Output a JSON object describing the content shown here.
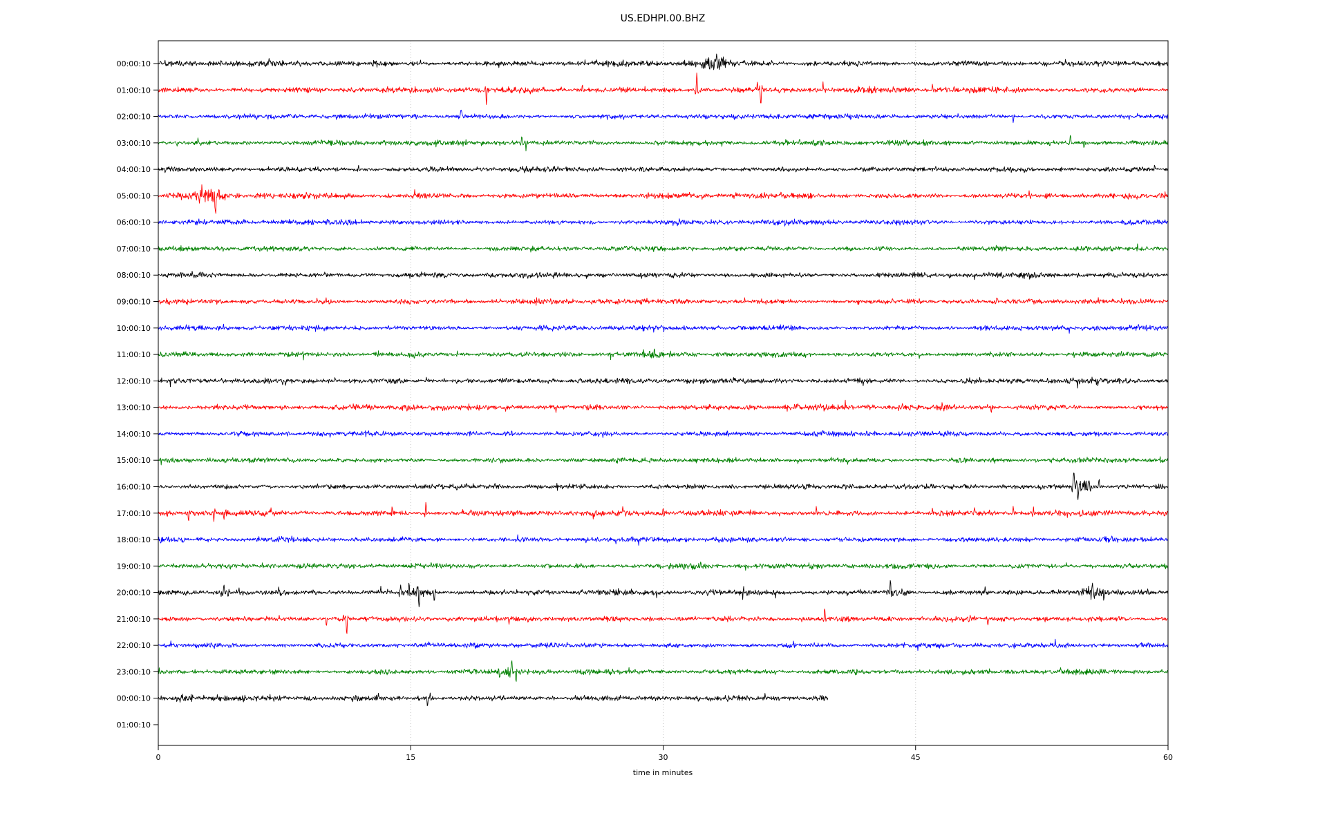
{
  "figure": {
    "title": "US.EDHPI.00.BHZ",
    "xlabel": "time in minutes"
  },
  "chart_data": {
    "type": "line",
    "subtype": "seismogram-helicorder-dayplot",
    "title": "US.EDHPI.00.BHZ",
    "xlabel": "time in minutes",
    "ylabel": "",
    "xlim": [
      0,
      60
    ],
    "x_ticks": [
      0,
      15,
      30,
      45,
      60
    ],
    "grid_minutes": [
      15,
      30,
      45
    ],
    "grid_color": "#b0b0b0",
    "grid_style": "dotted",
    "spine_color": "#000000",
    "legend": "none",
    "trace_color_cycle": [
      "#000000",
      "#ff0000",
      "#0000ff",
      "#008000"
    ],
    "rows": [
      {
        "label": "00:00:10",
        "color": "#000000",
        "start_min": 0,
        "end_min": 60,
        "noise": 3.4,
        "events": [
          {
            "t": 33.0,
            "amp": 11,
            "dir": "down",
            "kind": "burst",
            "w": 0.9
          }
        ]
      },
      {
        "label": "01:00:10",
        "color": "#ff0000",
        "start_min": 0,
        "end_min": 60,
        "noise": 3.4,
        "events": [
          {
            "t": 19.5,
            "amp": 22,
            "dir": "down",
            "kind": "spike",
            "w": 0.06
          },
          {
            "t": 25.2,
            "amp": 9,
            "dir": "up",
            "kind": "spike",
            "w": 0.05
          },
          {
            "t": 32.0,
            "amp": 26,
            "dir": "up",
            "kind": "spike",
            "w": 0.07
          },
          {
            "t": 35.8,
            "amp": 22,
            "dir": "down",
            "kind": "spike",
            "w": 0.07
          },
          {
            "t": 35.6,
            "amp": 10,
            "dir": "up",
            "kind": "spike",
            "w": 0.05
          },
          {
            "t": 39.5,
            "amp": 11,
            "dir": "up",
            "kind": "spike",
            "w": 0.05
          },
          {
            "t": 46.0,
            "amp": 9,
            "dir": "up",
            "kind": "spike",
            "w": 0.05
          },
          {
            "t": 47.3,
            "amp": 8,
            "dir": "up",
            "kind": "spike",
            "w": 0.05
          }
        ]
      },
      {
        "label": "02:00:10",
        "color": "#0000ff",
        "start_min": 0,
        "end_min": 60,
        "noise": 3.0,
        "events": [
          {
            "t": 18.0,
            "amp": 9,
            "dir": "up",
            "kind": "spike",
            "w": 0.12
          },
          {
            "t": 50.8,
            "amp": 10,
            "dir": "down",
            "kind": "spike",
            "w": 0.06
          }
        ]
      },
      {
        "label": "03:00:10",
        "color": "#008000",
        "start_min": 0,
        "end_min": 60,
        "noise": 3.2,
        "events": [
          {
            "t": 9.7,
            "amp": 8,
            "dir": "up",
            "kind": "spike",
            "w": 0.05
          },
          {
            "t": 21.6,
            "amp": 13,
            "dir": "up",
            "kind": "spike",
            "w": 0.06
          },
          {
            "t": 21.85,
            "amp": 12,
            "dir": "down",
            "kind": "spike",
            "w": 0.05
          },
          {
            "t": 54.2,
            "amp": 11,
            "dir": "up",
            "kind": "spike",
            "w": 0.07
          },
          {
            "t": 55.0,
            "amp": 10,
            "dir": "down",
            "kind": "spike",
            "w": 0.05
          }
        ]
      },
      {
        "label": "04:00:10",
        "color": "#000000",
        "start_min": 0,
        "end_min": 60,
        "noise": 3.0,
        "events": [
          {
            "t": 11.9,
            "amp": 6,
            "dir": "up",
            "kind": "spike",
            "w": 0.05
          },
          {
            "t": 46.2,
            "amp": 5,
            "dir": "up",
            "kind": "spike",
            "w": 0.05
          },
          {
            "t": 59.2,
            "amp": 5,
            "dir": "up",
            "kind": "spike",
            "w": 0.05
          }
        ]
      },
      {
        "label": "05:00:10",
        "color": "#ff0000",
        "start_min": 0,
        "end_min": 60,
        "noise": 3.4,
        "events": [
          {
            "t": 3.0,
            "amp": 10,
            "dir": "up",
            "kind": "burst",
            "w": 1.1
          },
          {
            "t": 3.4,
            "amp": 22,
            "dir": "down",
            "kind": "spike",
            "w": 0.08
          },
          {
            "t": 2.6,
            "amp": 12,
            "dir": "up",
            "kind": "spike",
            "w": 0.06
          },
          {
            "t": 8.8,
            "amp": 7,
            "dir": "up",
            "kind": "spike",
            "w": 0.05
          }
        ]
      },
      {
        "label": "06:00:10",
        "color": "#0000ff",
        "start_min": 0,
        "end_min": 60,
        "noise": 3.0,
        "events": [
          {
            "t": 25.0,
            "amp": 4,
            "dir": "up",
            "kind": "spike",
            "w": 0.05
          }
        ]
      },
      {
        "label": "07:00:10",
        "color": "#008000",
        "start_min": 0,
        "end_min": 60,
        "noise": 2.9,
        "events": []
      },
      {
        "label": "08:00:10",
        "color": "#000000",
        "start_min": 0,
        "end_min": 60,
        "noise": 3.1,
        "events": []
      },
      {
        "label": "09:00:10",
        "color": "#ff0000",
        "start_min": 0,
        "end_min": 60,
        "noise": 3.1,
        "events": [
          {
            "t": 15.0,
            "amp": 5,
            "dir": "up",
            "kind": "spike",
            "w": 0.05
          },
          {
            "t": 26.0,
            "amp": 4,
            "dir": "down",
            "kind": "spike",
            "w": 0.05
          }
        ]
      },
      {
        "label": "10:00:10",
        "color": "#0000ff",
        "start_min": 0,
        "end_min": 60,
        "noise": 3.0,
        "events": []
      },
      {
        "label": "11:00:10",
        "color": "#008000",
        "start_min": 0,
        "end_min": 60,
        "noise": 3.0,
        "events": [
          {
            "t": 29.5,
            "amp": 5,
            "dir": "up",
            "kind": "burst",
            "w": 0.8
          }
        ]
      },
      {
        "label": "12:00:10",
        "color": "#000000",
        "start_min": 0,
        "end_min": 60,
        "noise": 3.1,
        "events": [
          {
            "t": 10.5,
            "amp": 5,
            "dir": "up",
            "kind": "spike",
            "w": 0.05
          },
          {
            "t": 17.0,
            "amp": 4,
            "dir": "up",
            "kind": "spike",
            "w": 0.05
          }
        ]
      },
      {
        "label": "13:00:10",
        "color": "#ff0000",
        "start_min": 0,
        "end_min": 60,
        "noise": 3.2,
        "events": [
          {
            "t": 14.7,
            "amp": 6,
            "dir": "down",
            "kind": "burst",
            "w": 0.5
          },
          {
            "t": 38.0,
            "amp": 5,
            "dir": "up",
            "kind": "spike",
            "w": 0.05
          },
          {
            "t": 49.5,
            "amp": 7,
            "dir": "down",
            "kind": "spike",
            "w": 0.05
          }
        ]
      },
      {
        "label": "14:00:10",
        "color": "#0000ff",
        "start_min": 0,
        "end_min": 60,
        "noise": 3.0,
        "events": [
          {
            "t": 21.0,
            "amp": 4,
            "dir": "up",
            "kind": "spike",
            "w": 0.05
          }
        ]
      },
      {
        "label": "15:00:10",
        "color": "#008000",
        "start_min": 0,
        "end_min": 60,
        "noise": 2.9,
        "events": []
      },
      {
        "label": "16:00:10",
        "color": "#000000",
        "start_min": 0,
        "end_min": 60,
        "noise": 3.0,
        "events": [
          {
            "t": 20.0,
            "amp": 5,
            "dir": "up",
            "kind": "spike",
            "w": 0.05
          },
          {
            "t": 54.4,
            "amp": 20,
            "dir": "up",
            "kind": "spike",
            "w": 0.09
          },
          {
            "t": 54.65,
            "amp": 16,
            "dir": "down",
            "kind": "spike",
            "w": 0.07
          },
          {
            "t": 55.3,
            "amp": 13,
            "dir": "up",
            "kind": "spike",
            "w": 0.08
          },
          {
            "t": 55.9,
            "amp": 10,
            "dir": "up",
            "kind": "spike",
            "w": 0.06
          },
          {
            "t": 54.9,
            "amp": 8,
            "dir": "up",
            "kind": "burst",
            "w": 0.7
          }
        ]
      },
      {
        "label": "17:00:10",
        "color": "#ff0000",
        "start_min": 0,
        "end_min": 60,
        "noise": 3.4,
        "events": [
          {
            "t": 1.8,
            "amp": 11,
            "dir": "down",
            "kind": "spike",
            "w": 0.06
          },
          {
            "t": 3.3,
            "amp": 13,
            "dir": "down",
            "kind": "spike",
            "w": 0.06
          },
          {
            "t": 3.9,
            "amp": 11,
            "dir": "down",
            "kind": "spike",
            "w": 0.05
          },
          {
            "t": 13.9,
            "amp": 10,
            "dir": "up",
            "kind": "spike",
            "w": 0.05
          },
          {
            "t": 15.9,
            "amp": 15,
            "dir": "up",
            "kind": "spike",
            "w": 0.06
          },
          {
            "t": 27.6,
            "amp": 8,
            "dir": "up",
            "kind": "spike",
            "w": 0.05
          },
          {
            "t": 30.0,
            "amp": 9,
            "dir": "up",
            "kind": "spike",
            "w": 0.05
          },
          {
            "t": 39.1,
            "amp": 10,
            "dir": "up",
            "kind": "spike",
            "w": 0.05
          },
          {
            "t": 46.0,
            "amp": 8,
            "dir": "up",
            "kind": "spike",
            "w": 0.05
          },
          {
            "t": 48.5,
            "amp": 8,
            "dir": "up",
            "kind": "spike",
            "w": 0.05
          },
          {
            "t": 50.8,
            "amp": 10,
            "dir": "up",
            "kind": "spike",
            "w": 0.06
          },
          {
            "t": 52.0,
            "amp": 8,
            "dir": "up",
            "kind": "spike",
            "w": 0.05
          }
        ]
      },
      {
        "label": "18:00:10",
        "color": "#0000ff",
        "start_min": 0,
        "end_min": 60,
        "noise": 3.0,
        "events": [
          {
            "t": 14.0,
            "amp": 4,
            "dir": "up",
            "kind": "spike",
            "w": 0.05
          },
          {
            "t": 44.0,
            "amp": 4,
            "dir": "down",
            "kind": "spike",
            "w": 0.05
          }
        ]
      },
      {
        "label": "19:00:10",
        "color": "#008000",
        "start_min": 0,
        "end_min": 60,
        "noise": 3.0,
        "events": [
          {
            "t": 31.5,
            "amp": 4,
            "dir": "up",
            "kind": "burst",
            "w": 1.0
          }
        ]
      },
      {
        "label": "20:00:10",
        "color": "#000000",
        "start_min": 0,
        "end_min": 60,
        "noise": 3.2,
        "events": [
          {
            "t": 3.9,
            "amp": 9,
            "dir": "up",
            "kind": "spike",
            "w": 0.06
          },
          {
            "t": 4.15,
            "amp": 8,
            "dir": "down",
            "kind": "spike",
            "w": 0.05
          },
          {
            "t": 4.8,
            "amp": 7,
            "dir": "up",
            "kind": "spike",
            "w": 0.05
          },
          {
            "t": 14.4,
            "amp": 11,
            "dir": "up",
            "kind": "spike",
            "w": 0.06
          },
          {
            "t": 14.9,
            "amp": 13,
            "dir": "up",
            "kind": "spike",
            "w": 0.06
          },
          {
            "t": 15.5,
            "amp": 20,
            "dir": "down",
            "kind": "spike",
            "w": 0.07
          },
          {
            "t": 16.4,
            "amp": 12,
            "dir": "down",
            "kind": "spike",
            "w": 0.06
          },
          {
            "t": 15.3,
            "amp": 6,
            "dir": "up",
            "kind": "burst",
            "w": 1.0
          },
          {
            "t": 43.5,
            "amp": 13,
            "dir": "up",
            "kind": "spike",
            "w": 0.07
          },
          {
            "t": 44.2,
            "amp": 10,
            "dir": "up",
            "kind": "spike",
            "w": 0.06
          },
          {
            "t": 43.8,
            "amp": 5,
            "dir": "up",
            "kind": "burst",
            "w": 0.8
          },
          {
            "t": 55.5,
            "amp": 10,
            "dir": "up",
            "kind": "spike",
            "w": 0.07
          },
          {
            "t": 56.2,
            "amp": 9,
            "dir": "down",
            "kind": "spike",
            "w": 0.06
          },
          {
            "t": 55.8,
            "amp": 6,
            "dir": "up",
            "kind": "burst",
            "w": 0.8
          },
          {
            "t": 58.8,
            "amp": 6,
            "dir": "up",
            "kind": "spike",
            "w": 0.05
          }
        ]
      },
      {
        "label": "21:00:10",
        "color": "#ff0000",
        "start_min": 0,
        "end_min": 60,
        "noise": 3.2,
        "events": [
          {
            "t": 10.0,
            "amp": 9,
            "dir": "down",
            "kind": "spike",
            "w": 0.05
          },
          {
            "t": 11.2,
            "amp": 22,
            "dir": "down",
            "kind": "spike",
            "w": 0.07
          },
          {
            "t": 11.0,
            "amp": 8,
            "dir": "up",
            "kind": "spike",
            "w": 0.05
          },
          {
            "t": 39.6,
            "amp": 16,
            "dir": "up",
            "kind": "spike",
            "w": 0.06
          },
          {
            "t": 49.3,
            "amp": 11,
            "dir": "down",
            "kind": "spike",
            "w": 0.06
          }
        ]
      },
      {
        "label": "22:00:10",
        "color": "#0000ff",
        "start_min": 0,
        "end_min": 60,
        "noise": 3.0,
        "events": []
      },
      {
        "label": "23:00:10",
        "color": "#008000",
        "start_min": 0,
        "end_min": 60,
        "noise": 3.1,
        "events": [
          {
            "t": 20.3,
            "amp": 10,
            "dir": "down",
            "kind": "spike",
            "w": 0.06
          },
          {
            "t": 21.0,
            "amp": 13,
            "dir": "up",
            "kind": "spike",
            "w": 0.07
          },
          {
            "t": 21.25,
            "amp": 14,
            "dir": "down",
            "kind": "spike",
            "w": 0.06
          },
          {
            "t": 20.8,
            "amp": 6,
            "dir": "up",
            "kind": "burst",
            "w": 0.6
          }
        ]
      },
      {
        "label": "00:00:10",
        "color": "#000000",
        "start_min": 0,
        "end_min": 39.8,
        "noise": 3.2,
        "events": [
          {
            "t": 1.5,
            "amp": 5,
            "dir": "up",
            "kind": "burst",
            "w": 0.6
          },
          {
            "t": 16.0,
            "amp": 12,
            "dir": "down",
            "kind": "spike",
            "w": 0.06
          },
          {
            "t": 16.15,
            "amp": 6,
            "dir": "up",
            "kind": "spike",
            "w": 0.05
          }
        ]
      },
      {
        "label": "01:00:10",
        "color": null,
        "start_min": 0,
        "end_min": 0,
        "noise": 0,
        "events": []
      }
    ]
  }
}
